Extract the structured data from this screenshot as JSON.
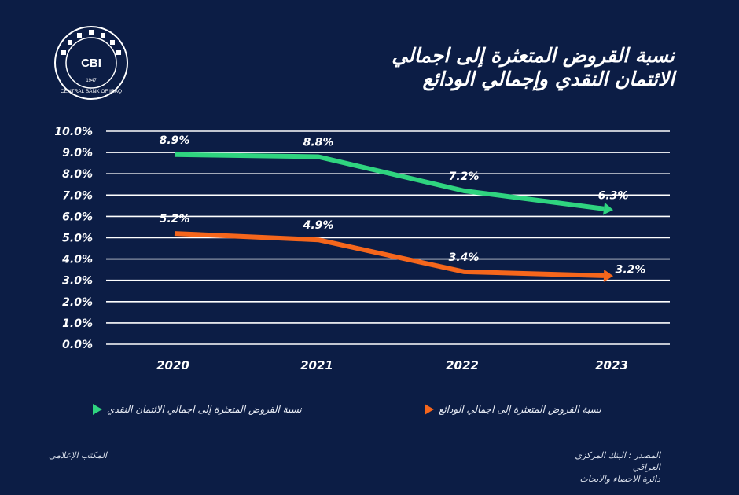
{
  "header": {
    "title_line1": "نسبة القروض المتعثرة إلى اجمالي",
    "title_line2": "الائتمان النقدي وإجمالي الودائع",
    "logo_text": "CBI",
    "logo_caption": "CENTRAL BANK OF IRAQ",
    "logo_year": "1947"
  },
  "chart_data": {
    "type": "line",
    "title": "نسبة القروض المتعثرة إلى اجمالي الائتمان النقدي وإجمالي الودائع",
    "categories": [
      "2020",
      "2021",
      "2022",
      "2023"
    ],
    "ylim": [
      0,
      10
    ],
    "yticks": [
      "0.0%",
      "1.0%",
      "2.0%",
      "3.0%",
      "4.0%",
      "5.0%",
      "6.0%",
      "7.0%",
      "8.0%",
      "9.0%",
      "10.0%"
    ],
    "grid": true,
    "legend_placement": "bottom",
    "series": [
      {
        "name": "نسبة القروض المتعثرة إلى اجمالي الائتمان النقدي",
        "values": [
          8.9,
          8.8,
          7.2,
          6.3
        ],
        "labels": [
          "8.9%",
          "8.8%",
          "7.2%",
          "6.3%"
        ],
        "color": "#2fd47f"
      },
      {
        "name": "نسبة القروض المتعثرة إلى اجمالي الودائع",
        "values": [
          5.2,
          4.9,
          3.4,
          3.2
        ],
        "labels": [
          "5.2%",
          "4.9%",
          "3.4%",
          "3.2%"
        ],
        "color": "#f5661c"
      }
    ]
  },
  "footer": {
    "left": "المكتب الإعلامي",
    "source_line1": "المصدر : البنك المركزي العراقي",
    "source_line2": "دائرة الاحصاء والابحاث"
  }
}
